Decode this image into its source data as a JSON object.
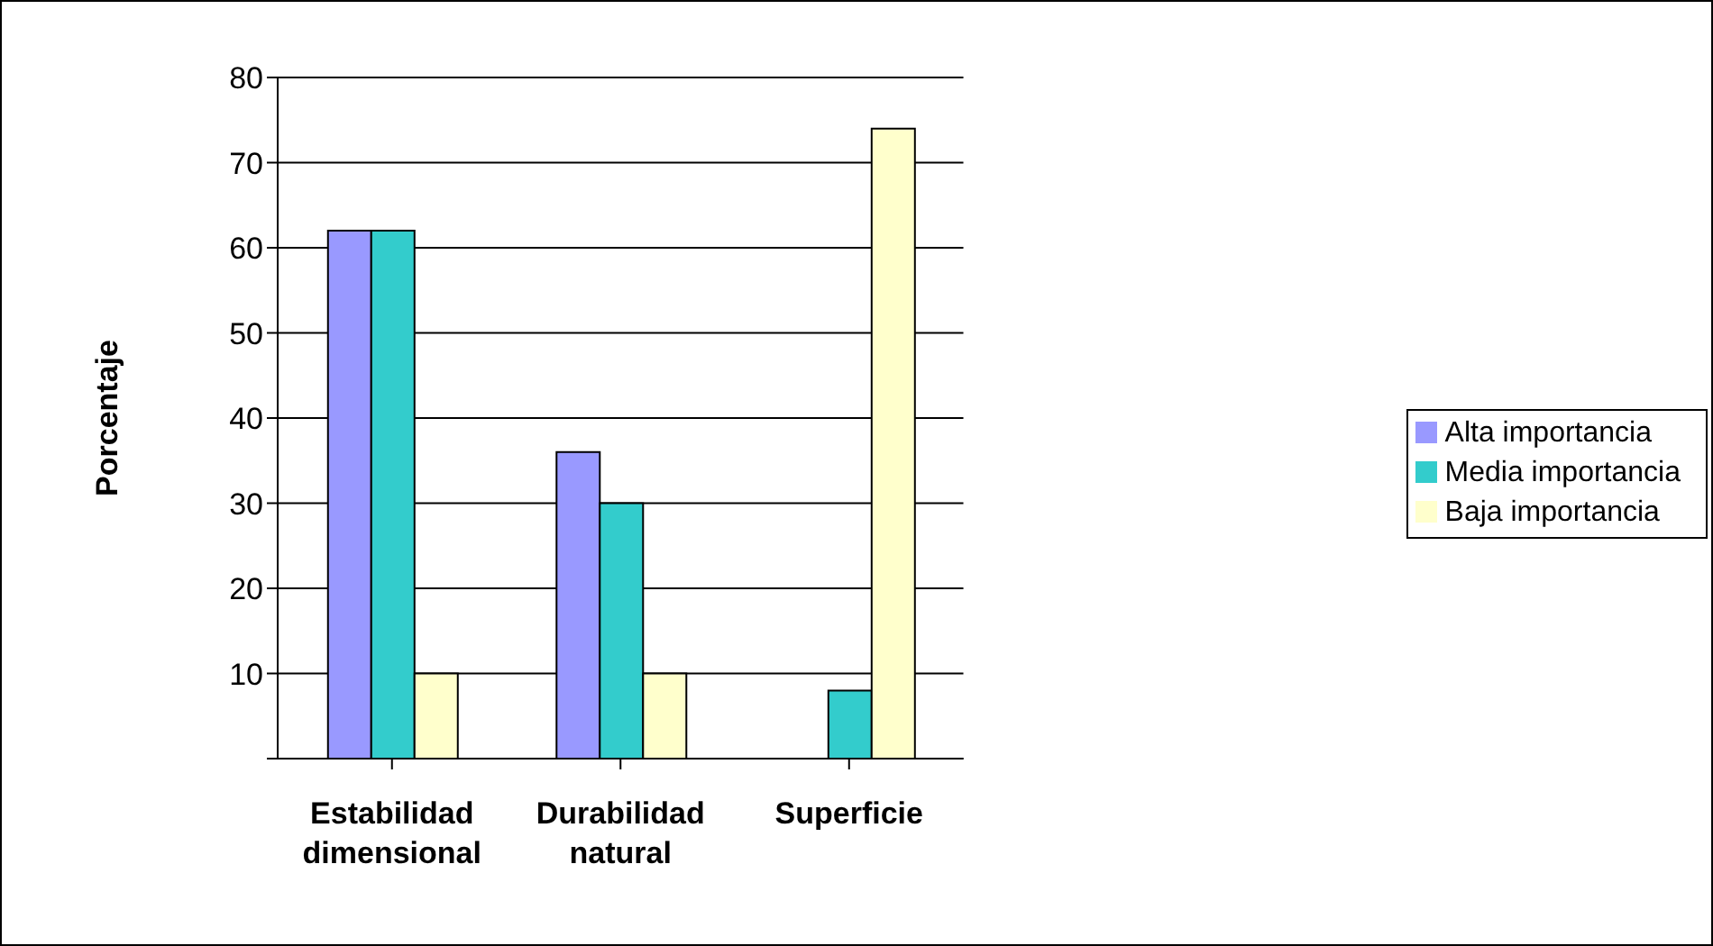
{
  "chart_data": {
    "type": "bar",
    "ylabel": "Porcentaje",
    "categories": [
      "Estabilidad dimensional",
      "Durabilidad natural",
      "Superficie"
    ],
    "series": [
      {
        "name": "Alta importancia",
        "color": "#9999ff",
        "values": [
          62,
          36,
          0
        ]
      },
      {
        "name": "Media importancia",
        "color": "#33cccc",
        "values": [
          62,
          30,
          8
        ]
      },
      {
        "name": "Baja importancia",
        "color": "#ffffcc",
        "values": [
          10,
          10,
          74
        ]
      }
    ],
    "ylim": [
      0,
      80
    ],
    "yticks": [
      {
        "value": 0,
        "label": null
      },
      10,
      20,
      30,
      40,
      50,
      60,
      70,
      80
    ],
    "grid": "y",
    "legend": "right"
  }
}
